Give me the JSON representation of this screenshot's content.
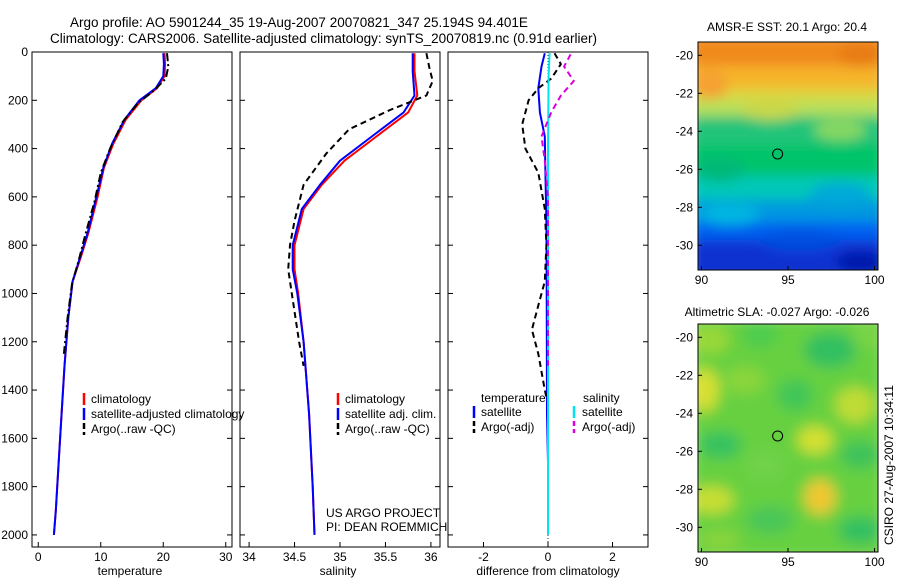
{
  "title": {
    "line1": "Argo profile: AO 5901244_35 19-Aug-2007 20070821_347 25.194S 94.401E",
    "line2": "Climatology: CARS2006. Satellite-adjusted climatology: synTS_20070819.nc (0.91d earlier)"
  },
  "annotation": {
    "project": "US ARGO PROJECT",
    "pi": "PI: DEAN ROEMMICH",
    "side_stamp": "CSIRO 27-Aug-2007 10:34:11"
  },
  "colors": {
    "climatology": "#ff0000",
    "satellite": "#0000ff",
    "argo": "#000000",
    "salinity_satellite": "#00e5ee",
    "salinity_argo": "#dd00dd"
  },
  "chart_data": [
    {
      "type": "line",
      "xlabel": "temperature",
      "ylabel": "",
      "xlim": [
        -1,
        31
      ],
      "ylim": [
        2050,
        0
      ],
      "xticks": [
        0,
        10,
        20,
        30
      ],
      "yticks": [
        0,
        200,
        400,
        600,
        800,
        1000,
        1200,
        1400,
        1600,
        1800,
        2000
      ],
      "legend": [
        "climatology",
        "satellite-adjusted climatology",
        "Argo(..raw -QC)"
      ],
      "legend_placement": "lower-center",
      "series": [
        {
          "name": "climatology",
          "style": "solid",
          "color": "#ff0000",
          "points": [
            [
              20.2,
              5
            ],
            [
              20.3,
              50
            ],
            [
              20.2,
              100
            ],
            [
              19.0,
              150
            ],
            [
              16.5,
              200
            ],
            [
              14.0,
              280
            ],
            [
              12.0,
              380
            ],
            [
              10.5,
              480
            ],
            [
              9.5,
              600
            ],
            [
              8.0,
              750
            ],
            [
              6.8,
              850
            ],
            [
              5.5,
              950
            ],
            [
              4.8,
              1100
            ],
            [
              4.2,
              1300
            ],
            [
              3.5,
              1600
            ],
            [
              2.8,
              1900
            ],
            [
              2.5,
              2000
            ]
          ]
        },
        {
          "name": "satellite-adjusted climatology",
          "style": "solid",
          "color": "#0000ff",
          "points": [
            [
              20.0,
              5
            ],
            [
              20.1,
              50
            ],
            [
              20.0,
              100
            ],
            [
              18.8,
              150
            ],
            [
              16.2,
              200
            ],
            [
              13.8,
              280
            ],
            [
              11.8,
              380
            ],
            [
              10.4,
              480
            ],
            [
              9.3,
              600
            ],
            [
              7.9,
              750
            ],
            [
              6.7,
              850
            ],
            [
              5.5,
              950
            ],
            [
              4.8,
              1100
            ],
            [
              4.2,
              1300
            ],
            [
              3.5,
              1600
            ],
            [
              2.8,
              1900
            ],
            [
              2.5,
              2000
            ]
          ]
        },
        {
          "name": "Argo(..raw -QC)",
          "style": "dashdot",
          "color": "#000000",
          "points": [
            [
              20.6,
              5
            ],
            [
              20.8,
              60
            ],
            [
              20.4,
              110
            ],
            [
              18.5,
              160
            ],
            [
              16.0,
              210
            ],
            [
              13.5,
              290
            ],
            [
              11.5,
              400
            ],
            [
              10.0,
              500
            ],
            [
              9.0,
              620
            ],
            [
              7.5,
              760
            ],
            [
              6.5,
              860
            ],
            [
              5.4,
              960
            ],
            [
              4.7,
              1100
            ],
            [
              4.1,
              1250
            ]
          ]
        }
      ]
    },
    {
      "type": "line",
      "xlabel": "salinity",
      "ylabel": "",
      "xlim": [
        33.9,
        36.1
      ],
      "ylim": [
        2050,
        0
      ],
      "xticks": [
        34,
        34.5,
        35,
        35.5,
        36
      ],
      "legend": [
        "climatology",
        "satellite adj. clim.",
        "Argo(..raw -QC)"
      ],
      "legend_placement": "lower-center",
      "series": [
        {
          "name": "climatology",
          "style": "solid",
          "color": "#ff0000",
          "points": [
            [
              35.82,
              5
            ],
            [
              35.82,
              80
            ],
            [
              35.85,
              180
            ],
            [
              35.75,
              250
            ],
            [
              35.4,
              350
            ],
            [
              35.05,
              450
            ],
            [
              34.8,
              550
            ],
            [
              34.6,
              650
            ],
            [
              34.5,
              800
            ],
            [
              34.5,
              900
            ],
            [
              34.54,
              1000
            ],
            [
              34.6,
              1200
            ],
            [
              34.66,
              1500
            ],
            [
              34.7,
              1800
            ],
            [
              34.72,
              2000
            ]
          ]
        },
        {
          "name": "satellite adj. clim.",
          "style": "solid",
          "color": "#0000ff",
          "points": [
            [
              35.8,
              5
            ],
            [
              35.8,
              80
            ],
            [
              35.82,
              180
            ],
            [
              35.7,
              250
            ],
            [
              35.35,
              350
            ],
            [
              35.0,
              450
            ],
            [
              34.78,
              550
            ],
            [
              34.58,
              650
            ],
            [
              34.48,
              800
            ],
            [
              34.48,
              900
            ],
            [
              34.53,
              1000
            ],
            [
              34.6,
              1200
            ],
            [
              34.66,
              1500
            ],
            [
              34.7,
              1800
            ],
            [
              34.72,
              2000
            ]
          ]
        },
        {
          "name": "Argo(..raw -QC)",
          "style": "dashed",
          "color": "#000000",
          "points": [
            [
              35.95,
              5
            ],
            [
              35.98,
              60
            ],
            [
              36.02,
              120
            ],
            [
              35.95,
              180
            ],
            [
              35.55,
              240
            ],
            [
              35.1,
              320
            ],
            [
              34.85,
              420
            ],
            [
              34.6,
              550
            ],
            [
              34.5,
              700
            ],
            [
              34.45,
              800
            ],
            [
              34.43,
              900
            ],
            [
              34.47,
              1000
            ],
            [
              34.55,
              1200
            ],
            [
              34.6,
              1300
            ]
          ]
        }
      ]
    },
    {
      "type": "line",
      "xlabel": "difference from climatology",
      "ylabel": "",
      "xlim": [
        -3.1,
        3.1
      ],
      "ylim": [
        2050,
        0
      ],
      "xticks": [
        -2,
        0,
        2
      ],
      "legend": [
        "temperature",
        "satellite",
        "Argo(-adj)",
        "salinity",
        "satellite",
        "Argo(-adj)"
      ],
      "legend_placement": "lower-center",
      "series": [
        {
          "name": "temperature satellite",
          "style": "solid",
          "color": "#0000ff",
          "points": [
            [
              -0.1,
              5
            ],
            [
              -0.2,
              60
            ],
            [
              -0.3,
              150
            ],
            [
              -0.25,
              250
            ],
            [
              -0.1,
              350
            ],
            [
              -0.08,
              500
            ],
            [
              -0.05,
              700
            ],
            [
              -0.04,
              1000
            ],
            [
              -0.03,
              1500
            ],
            [
              0,
              1700
            ]
          ]
        },
        {
          "name": "temperature Argo(-adj)",
          "style": "dashed",
          "color": "#000000",
          "points": [
            [
              0.2,
              5
            ],
            [
              0.4,
              50
            ],
            [
              0.1,
              110
            ],
            [
              -0.3,
              150
            ],
            [
              -0.6,
              200
            ],
            [
              -0.8,
              300
            ],
            [
              -0.7,
              400
            ],
            [
              -0.3,
              500
            ],
            [
              -0.1,
              650
            ],
            [
              -0.05,
              800
            ],
            [
              -0.1,
              950
            ],
            [
              -0.3,
              1050
            ],
            [
              -0.5,
              1150
            ],
            [
              -0.3,
              1250
            ],
            [
              -0.1,
              1400
            ],
            [
              -0.05,
              1430
            ]
          ]
        },
        {
          "name": "salinity satellite",
          "style": "solid",
          "color": "#00e5ee",
          "points": [
            [
              0.05,
              5
            ],
            [
              0.02,
              100
            ],
            [
              0,
              400
            ],
            [
              0,
              1000
            ],
            [
              0,
              1500
            ],
            [
              0,
              2000
            ]
          ]
        },
        {
          "name": "salinity Argo(-adj)",
          "style": "dashed",
          "color": "#dd00dd",
          "points": [
            [
              0.7,
              10
            ],
            [
              0.5,
              60
            ],
            [
              0.8,
              120
            ],
            [
              0.4,
              180
            ],
            [
              0.1,
              250
            ],
            [
              -0.2,
              350
            ],
            [
              -0.1,
              450
            ],
            [
              0,
              600
            ],
            [
              0,
              800
            ],
            [
              0,
              1000
            ],
            [
              0,
              1300
            ]
          ]
        }
      ]
    },
    {
      "type": "heatmap",
      "title": "AMSR-E SST: 20.1  Argo: 20.4",
      "xlim": [
        89.8,
        100.2
      ],
      "ylim": [
        -31.3,
        -19.3
      ],
      "xticks": [
        90,
        95,
        100
      ],
      "yticks": [
        -20,
        -22,
        -24,
        -26,
        -28,
        -30
      ],
      "marker": {
        "lon": 94.401,
        "lat": -25.194
      },
      "colormap": "jet",
      "description_bands": [
        "orange north",
        "yellow",
        "green center",
        "cyan/blue south"
      ]
    },
    {
      "type": "heatmap",
      "title": "Altimetric SLA: -0.027  Argo: -0.026",
      "xlim": [
        89.8,
        100.2
      ],
      "ylim": [
        -31.3,
        -19.3
      ],
      "xticks": [
        90,
        95,
        100
      ],
      "yticks": [
        -20,
        -22,
        -24,
        -26,
        -28,
        -30
      ],
      "marker": {
        "lon": 94.401,
        "lat": -25.194
      },
      "colormap": "jet"
    }
  ]
}
